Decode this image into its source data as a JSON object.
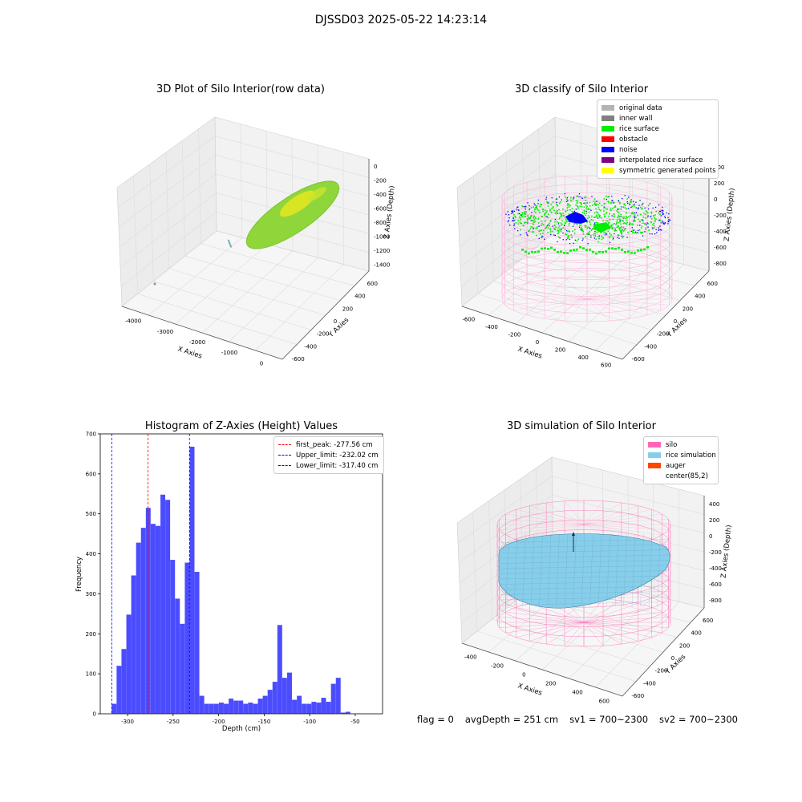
{
  "suptitle": "DJSSD03 2025-05-22 14:23:14",
  "panels": {
    "raw": {
      "title": "3D Plot of Silo Interior(row data)",
      "xlabel": "X Axies",
      "ylabel": "Y Axies",
      "zlabel": "Z Axies (Depth)",
      "xticks": [
        "-4000",
        "-3000",
        "-2000",
        "-1000",
        "0"
      ],
      "yticks": [
        "-600",
        "-400",
        "-200",
        "0",
        "200",
        "400",
        "600"
      ],
      "zticks": [
        "0",
        "-200",
        "-400",
        "-600",
        "-800",
        "-1000",
        "-1200",
        "-1400"
      ],
      "colors": {
        "surface": "#8fd63a",
        "highlight": "#e6e61e",
        "outlier": "#7fb3b8"
      }
    },
    "classify": {
      "title": "3D classify of Silo Interior",
      "xlabel": "X Axies",
      "ylabel": "Y Axies",
      "zlabel": "Z Axies (Depth)",
      "xticks": [
        "-600",
        "-400",
        "-200",
        "0",
        "200",
        "400",
        "600"
      ],
      "yticks": [
        "-600",
        "-400",
        "-200",
        "0",
        "200",
        "400",
        "600"
      ],
      "zticks": [
        "400",
        "200",
        "0",
        "-200",
        "-400",
        "-600",
        "-800"
      ],
      "legend": [
        {
          "label": "original data",
          "color": "#b3b3b3"
        },
        {
          "label": "inner wall",
          "color": "#808080"
        },
        {
          "label": "rice surface",
          "color": "#00ee00"
        },
        {
          "label": "obstacle",
          "color": "#ff0000"
        },
        {
          "label": "noise",
          "color": "#0000ff"
        },
        {
          "label": "interpolated rice surface",
          "color": "#800080"
        },
        {
          "label": "symmetric generated points",
          "color": "#ffff00"
        }
      ],
      "colors": {
        "wire": "#ff9ed4"
      }
    },
    "hist": {
      "title": "Histogram of Z-Axies (Height) Values",
      "xlabel": "Depth (cm)",
      "ylabel": "Frequency",
      "color": "#0000ff",
      "legend": [
        {
          "label": "first_peak: -277.56 cm",
          "color": "#ff0000"
        },
        {
          "label": "Upper_limit: -232.02 cm",
          "color": "#0000ff"
        },
        {
          "label": "Lower_limit: -317.40 cm",
          "color": "#0000ff"
        }
      ]
    },
    "sim": {
      "title": "3D simulation of Silo Interior",
      "xlabel": "X Axies",
      "ylabel": "Y Axies",
      "zlabel": "Z Axies (Depth)",
      "xticks": [
        "-400",
        "-200",
        "0",
        "200",
        "400",
        "600"
      ],
      "yticks": [
        "-600",
        "-400",
        "-200",
        "0",
        "200",
        "400",
        "600"
      ],
      "zticks": [
        "400",
        "200",
        "0",
        "-200",
        "-400",
        "-600",
        "-800"
      ],
      "legend": [
        {
          "label": "silo",
          "color": "#ff69b4"
        },
        {
          "label": "rice simulation",
          "color": "#87ceeb"
        },
        {
          "label": "auger",
          "color": "#ff4500"
        },
        {
          "label": "center(85,2)",
          "color": "#ffffff"
        }
      ]
    }
  },
  "footer": {
    "flag": "flag = 0",
    "avg": "avgDepth = 251 cm",
    "sv1": "sv1 = 700~2300",
    "sv2": "sv2 = 700~2300"
  },
  "chart_data": {
    "type": "bar",
    "title": "Histogram of Z-Axies (Height) Values",
    "xlabel": "Depth (cm)",
    "ylabel": "Frequency",
    "xlim": [
      -330,
      -20
    ],
    "ylim": [
      0,
      700
    ],
    "xticks": [
      -300,
      -250,
      -200,
      -150,
      -100,
      -50
    ],
    "yticks": [
      0,
      100,
      200,
      300,
      400,
      500,
      600,
      700
    ],
    "bin_width": 5.35,
    "bin_start": -317.4,
    "values": [
      25,
      120,
      162,
      248,
      346,
      428,
      465,
      515,
      475,
      470,
      548,
      535,
      385,
      288,
      225,
      378,
      668,
      355,
      45,
      25,
      25,
      25,
      28,
      25,
      38,
      33,
      33,
      25,
      28,
      25,
      38,
      45,
      60,
      80,
      222,
      90,
      103,
      35,
      45,
      25,
      25,
      30,
      28,
      40,
      30,
      75,
      90,
      3,
      5
    ],
    "vlines": [
      {
        "name": "first_peak: -277.56 cm",
        "x": -277.56,
        "color": "#ff0000"
      },
      {
        "name": "Upper_limit: -232.02 cm",
        "x": -232.02,
        "color": "#0000ff"
      },
      {
        "name": "Lower_limit: -317.40 cm",
        "x": -317.4,
        "color": "#0000ff"
      }
    ]
  }
}
